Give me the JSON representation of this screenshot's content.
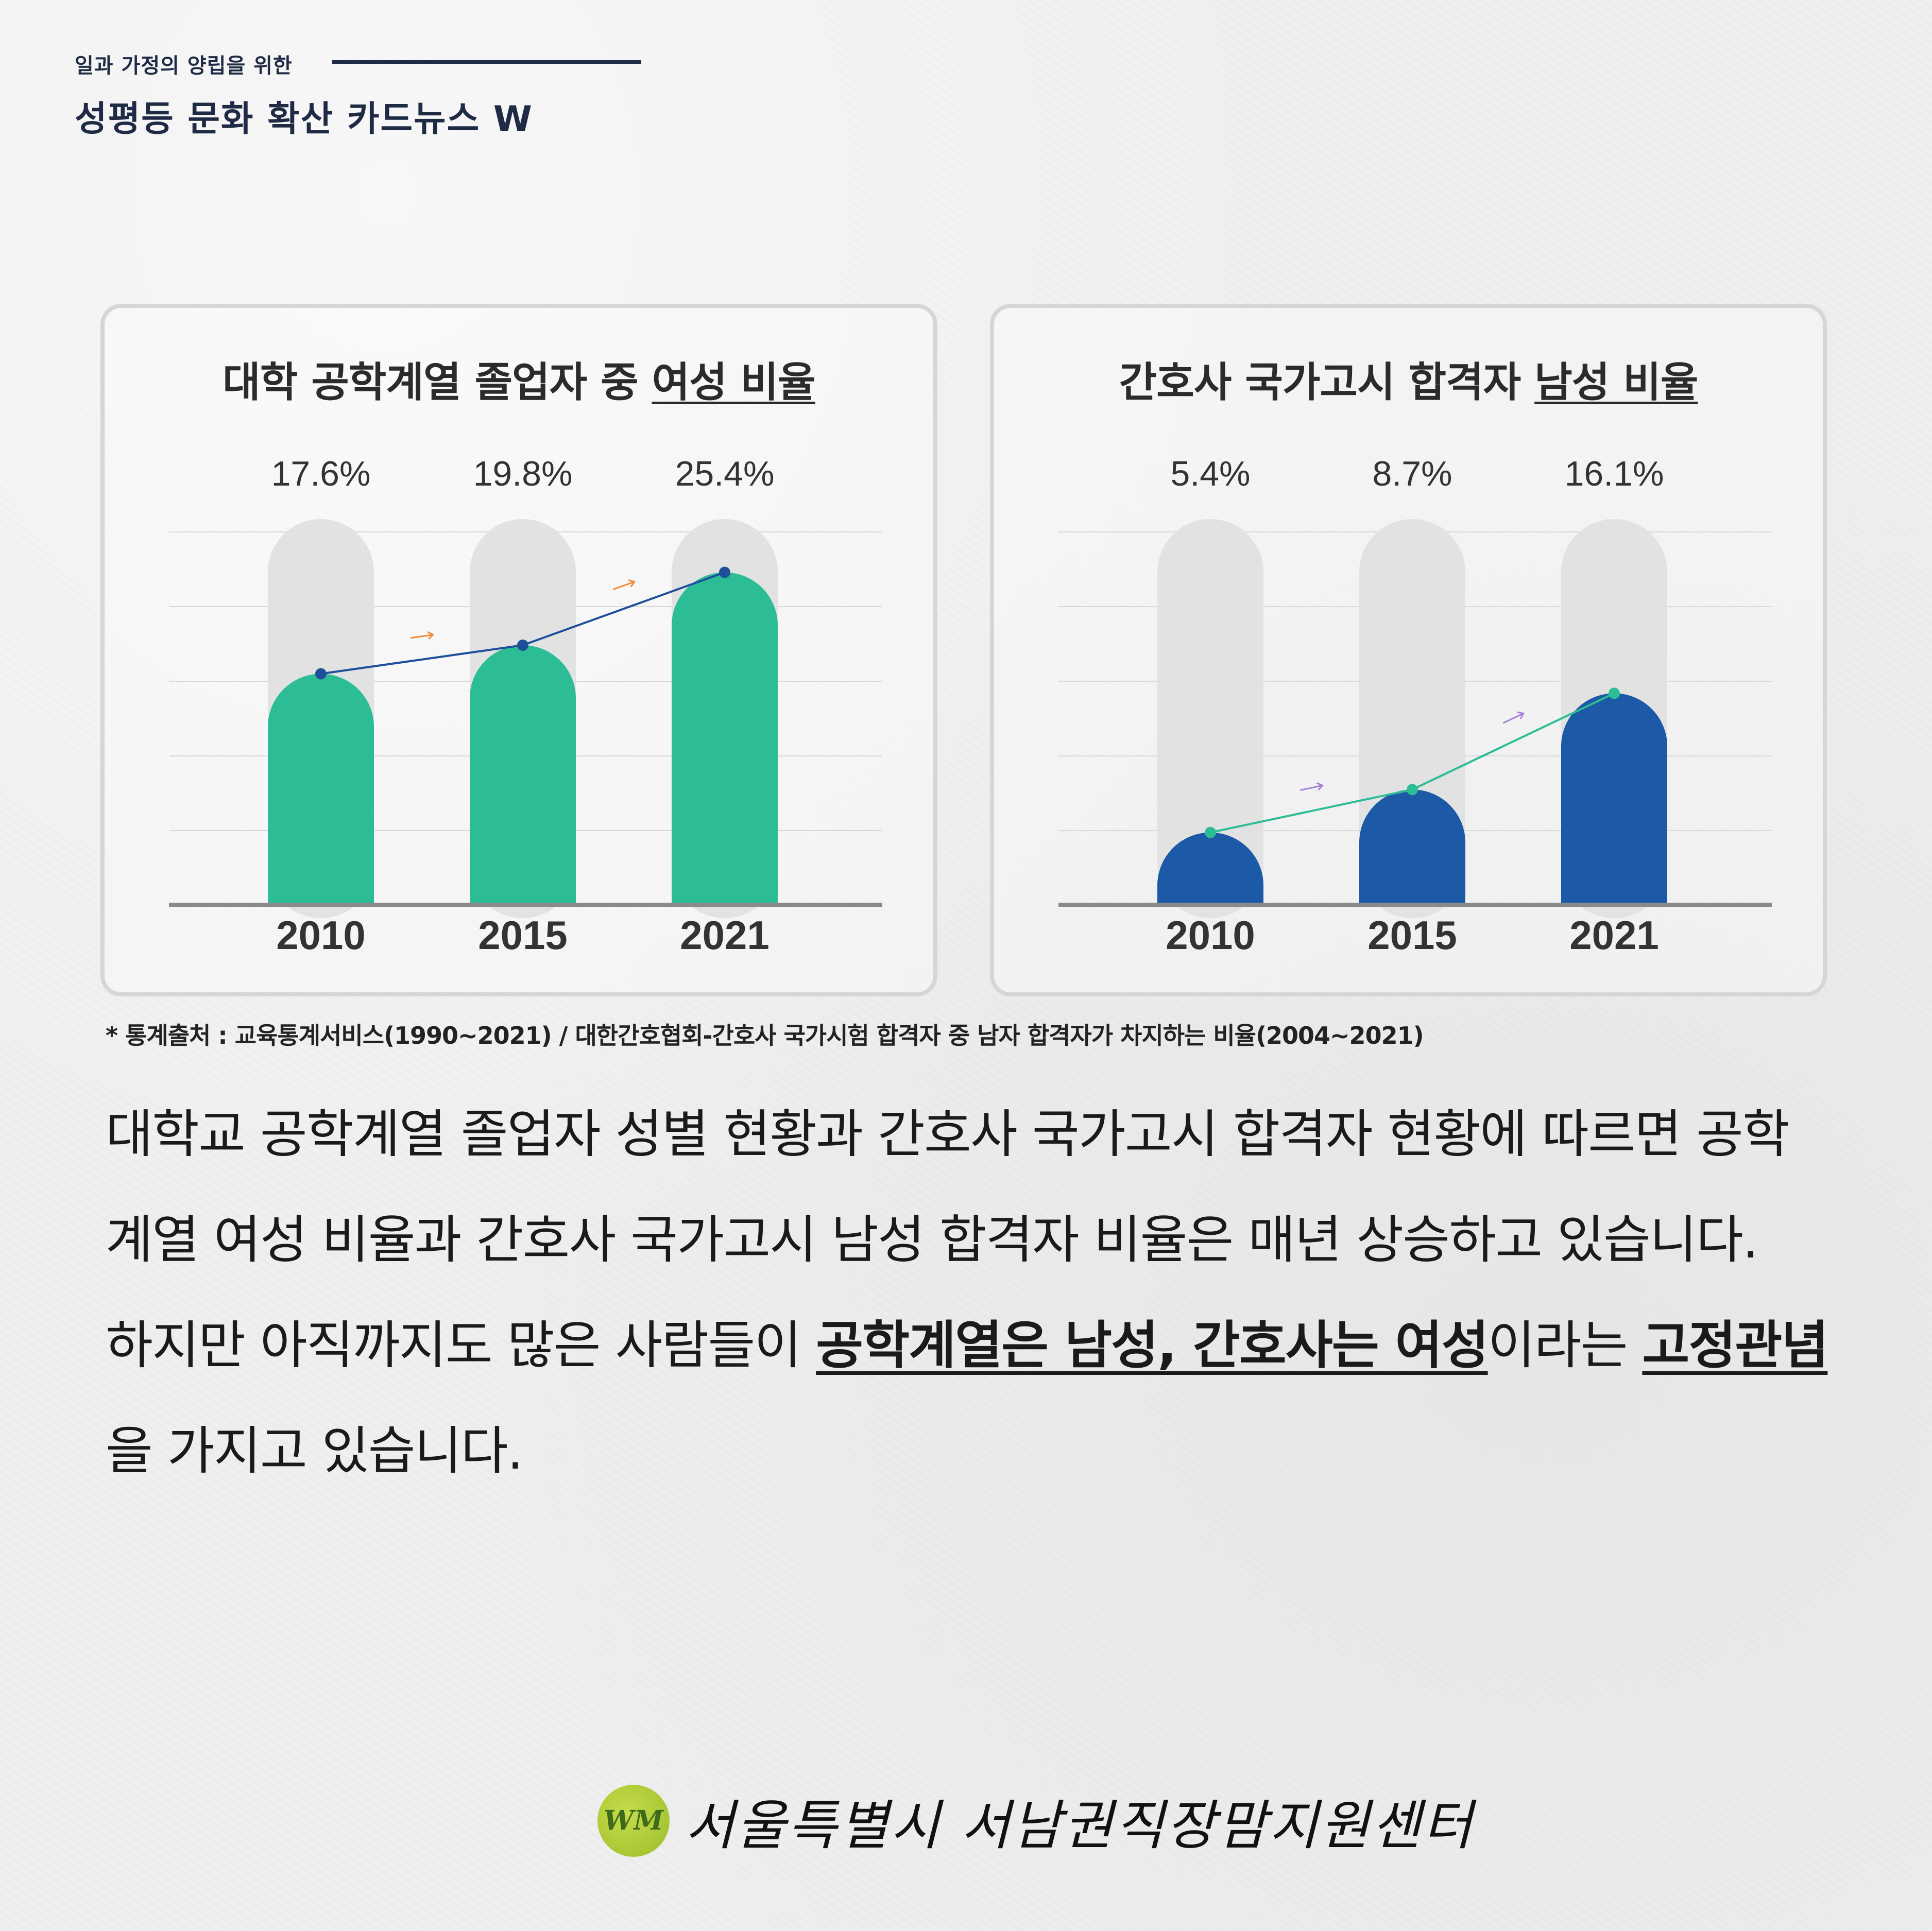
{
  "header": {
    "subtitle": "일과 가정의 양립을 위한",
    "title": "성평등 문화 확산 카드뉴스 W"
  },
  "chart_data": [
    {
      "type": "bar",
      "title_plain": "대학 공학계열 졸업자 중 ",
      "title_underlined": "여성 비율",
      "categories": [
        "2010",
        "2015",
        "2021"
      ],
      "values": [
        17.6,
        19.8,
        25.4
      ],
      "value_labels": [
        "17.6%",
        "19.8%",
        "25.4%"
      ],
      "bar_color": "#2dbd96",
      "line_color": "#1f4f9a",
      "arrow_color": "#f08a3c"
    },
    {
      "type": "bar",
      "title_plain": "간호사 국가고시 합격자 ",
      "title_underlined": "남성 비율",
      "categories": [
        "2010",
        "2015",
        "2021"
      ],
      "values": [
        5.4,
        8.7,
        16.1
      ],
      "value_labels": [
        "5.4%",
        "8.7%",
        "16.1%"
      ],
      "bar_color": "#1c59a6",
      "line_color": "#2dbd96",
      "arrow_color": "#a57fd8"
    }
  ],
  "source": "* 통계출처 : 교육통계서비스(1990~2021) / 대한간호협회-간호사 국가시험 합격자 중 남자 합격자가 차지하는 비율(2004~2021)",
  "body": {
    "p1": "대학교 공학계열 졸업자 성별 현황과 간호사 국가고시 합격자 현황에 따르면 공학계열 여성 비율과 간호사 국가고시 남성 합격자 비율은 매년 상승하고 있습니다.",
    "p2_a": "하지만 아직까지도 많은 사람들이 ",
    "p2_hl1": "공학계열은 남성, 간호사는 여성",
    "p2_b": "이라는 ",
    "p2_hl2": "고정관념",
    "p2_c": "을 가지고 있습니다."
  },
  "footer": {
    "logo_text": "WM",
    "name": "서울특별시 서남권직장맘지원센터"
  }
}
